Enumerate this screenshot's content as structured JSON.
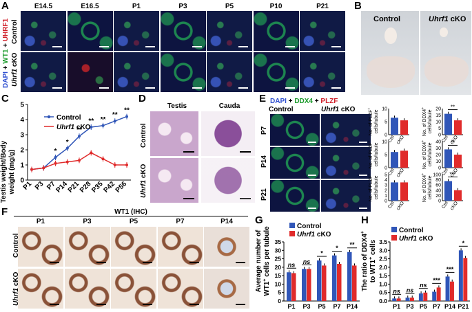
{
  "panels": {
    "A": "A",
    "B": "B",
    "C": "C",
    "D": "D",
    "E": "E",
    "F": "F",
    "G": "G",
    "H": "H"
  },
  "a": {
    "stages": [
      "E14.5",
      "E16.5",
      "P1",
      "P3",
      "P5",
      "P10",
      "P21"
    ],
    "stain_dapi": "DAPI",
    "stain_plus1": " + ",
    "stain_wt1": "WT1",
    "stain_plus2": " + ",
    "stain_uhrf1": "UHRF1",
    "row_control": "Control",
    "row_cko_gene": "Uhrf1",
    "row_cko_suffix": " cKO"
  },
  "b": {
    "control": "Control",
    "cko_gene": "Uhrf1",
    "cko_suffix": " cKO"
  },
  "c": {
    "ylabel_1": "Testis weight/Body",
    "ylabel_2": "weight (mg/g)",
    "legend_control": "Control",
    "legend_cko_gene": "Uhrf1",
    "legend_cko_suffix": " cKO",
    "stars": [
      "*",
      "*",
      "**",
      "**",
      "**",
      "**",
      "**"
    ]
  },
  "d": {
    "col_testis": "Testis",
    "col_cauda": "Cauda",
    "row_control": "Control",
    "row_cko_gene": "Uhrf1",
    "row_cko_suffix": " cKO"
  },
  "e": {
    "stain_dapi": "DAPI",
    "stain_plus1": " + ",
    "stain_ddx4": "DDX4",
    "stain_plus2": " + ",
    "stain_plzf": "PLZF",
    "col_control": "Control",
    "col_cko_gene": "Uhrf1",
    "col_cko_suffix": " cKO",
    "rows": [
      "P7",
      "P14",
      "P21"
    ],
    "plzf_label_1": "No. of PLZF",
    "plzf_label_2": "cells/tubule",
    "ddx4_label_1": "No. of DDX4",
    "ddx4_label_2": "cells/tubule",
    "sup": "+",
    "xcats": [
      "Ctrl",
      "cKO"
    ],
    "stars": [
      "**",
      "**",
      "***"
    ]
  },
  "f": {
    "title": "WT1 (IHC)",
    "stages": [
      "P1",
      "P3",
      "P5",
      "P7",
      "P14"
    ],
    "row_control": "Control",
    "row_cko_gene": "Uhrf1",
    "row_cko_suffix": " cKO"
  },
  "g": {
    "ylabel_1": "Average number of",
    "ylabel_2": "WT1",
    "ylabel_sup": "+",
    "ylabel_3": " cells per tubule",
    "legend_control": "Control",
    "legend_cko_gene": "Uhrf1",
    "legend_cko_suffix": " cKO",
    "sig": [
      "ns",
      "ns",
      "*",
      "*",
      "**"
    ]
  },
  "h": {
    "ylabel_1": "The ratio of DDX4",
    "ylabel_sup": "+",
    "ylabel_2": "to WT1",
    "ylabel_sup2": "+",
    "ylabel_3": " cells",
    "legend_control": "Control",
    "legend_cko_gene": "Uhrf1",
    "legend_cko_suffix": " cKO",
    "sig": [
      "ns",
      "ns",
      "ns",
      "***",
      "***",
      "*"
    ]
  },
  "chart_data": [
    {
      "type": "line",
      "panel": "C",
      "categories": [
        "P1",
        "P3",
        "P7",
        "P14",
        "P21",
        "P28",
        "P35",
        "P42",
        "P56"
      ],
      "series": [
        {
          "name": "Control",
          "values": [
            0.7,
            0.8,
            1.5,
            2.1,
            2.9,
            3.5,
            3.6,
            3.9,
            4.2
          ]
        },
        {
          "name": "Uhrf1 cKO",
          "values": [
            0.7,
            0.8,
            1.1,
            1.2,
            1.3,
            1.8,
            1.4,
            1.0,
            1.0
          ]
        }
      ],
      "ylim": [
        0,
        5
      ],
      "yticks": [
        0,
        1,
        2,
        3,
        4,
        5
      ]
    },
    {
      "type": "bar",
      "panel": "E",
      "subcharts": [
        {
          "row": "P7",
          "metric": "PLZF",
          "values": [
            6.5,
            5.5
          ],
          "ylim": [
            0,
            10
          ],
          "yticks": [
            0,
            5,
            10
          ]
        },
        {
          "row": "P7",
          "metric": "DDX4",
          "values": [
            16,
            11
          ],
          "ylim": [
            0,
            20
          ],
          "yticks": [
            0,
            5,
            10,
            15,
            20
          ]
        },
        {
          "row": "P14",
          "metric": "PLZF",
          "values": [
            6,
            6.5
          ],
          "ylim": [
            0,
            10
          ],
          "yticks": [
            0,
            5,
            10
          ]
        },
        {
          "row": "P14",
          "metric": "DDX4",
          "values": [
            28,
            20
          ],
          "ylim": [
            0,
            40
          ],
          "yticks": [
            0,
            10,
            20,
            30,
            40
          ]
        },
        {
          "row": "P21",
          "metric": "PLZF",
          "values": [
            3.5,
            3.5
          ],
          "ylim": [
            0,
            5
          ],
          "yticks": [
            0,
            1,
            2,
            3,
            4,
            5
          ]
        },
        {
          "row": "P21",
          "metric": "DDX4",
          "values": [
            75,
            40
          ],
          "ylim": [
            0,
            100
          ],
          "yticks": [
            0,
            20,
            40,
            60,
            80,
            100
          ]
        }
      ]
    },
    {
      "type": "bar",
      "panel": "G",
      "categories": [
        "P1",
        "P3",
        "P5",
        "P7",
        "P14"
      ],
      "series": [
        {
          "name": "Control",
          "values": [
            17,
            19,
            24,
            27,
            29
          ]
        },
        {
          "name": "Uhrf1 cKO",
          "values": [
            16.5,
            19,
            21,
            22,
            21
          ]
        }
      ],
      "ylim": [
        0,
        35
      ],
      "yticks": [
        0,
        5,
        10,
        15,
        20,
        25,
        30,
        35
      ]
    },
    {
      "type": "bar",
      "panel": "H",
      "categories": [
        "P1",
        "P3",
        "P5",
        "P7",
        "P14",
        "P21"
      ],
      "series": [
        {
          "name": "Control",
          "values": [
            0.15,
            0.2,
            0.45,
            0.55,
            1.45,
            3.0
          ]
        },
        {
          "name": "Uhrf1 cKO",
          "values": [
            0.15,
            0.2,
            0.5,
            0.8,
            1.15,
            2.55
          ]
        }
      ],
      "ylim": [
        0,
        3.5
      ],
      "yticks": [
        0,
        0.5,
        1.0,
        1.5,
        2.0,
        2.5,
        3.0,
        3.5
      ]
    }
  ]
}
